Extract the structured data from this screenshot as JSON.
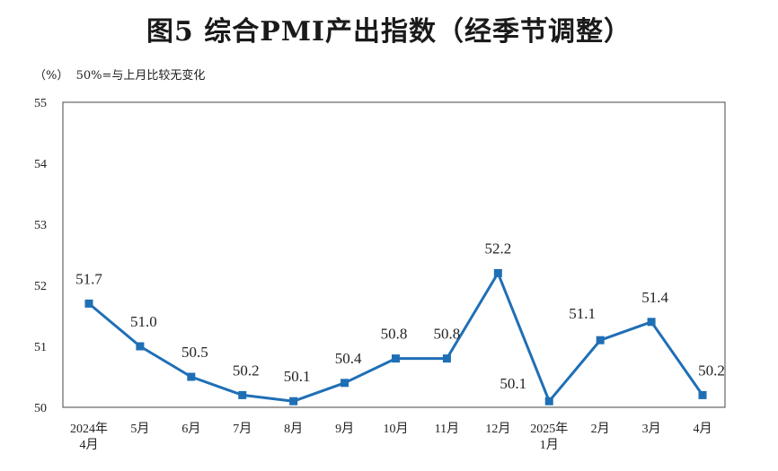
{
  "title": "图5  综合PMI产出指数（经季节调整）",
  "unit_note": "（%）  50%=与上月比较无变化",
  "chart_data": {
    "type": "line",
    "categories": [
      [
        "2024年",
        "4月"
      ],
      [
        "5月"
      ],
      [
        "6月"
      ],
      [
        "7月"
      ],
      [
        "8月"
      ],
      [
        "9月"
      ],
      [
        "10月"
      ],
      [
        "11月"
      ],
      [
        "12月"
      ],
      [
        "2025年",
        "1月"
      ],
      [
        "2月"
      ],
      [
        "3月"
      ],
      [
        "4月"
      ]
    ],
    "values": [
      51.7,
      51.0,
      50.5,
      50.2,
      50.1,
      50.4,
      50.8,
      50.8,
      52.2,
      50.1,
      51.1,
      51.4,
      50.2
    ],
    "data_labels": [
      "51.7",
      "51.0",
      "50.5",
      "50.2",
      "50.1",
      "50.4",
      "50.8",
      "50.8",
      "52.2",
      "50.1",
      "51.1",
      "51.4",
      "50.2"
    ],
    "ylim": [
      50,
      55
    ],
    "yticks": [
      "50",
      "51",
      "52",
      "53",
      "54",
      "55"
    ],
    "grid": false,
    "line_color": "#1f6fb5",
    "marker": "square"
  }
}
